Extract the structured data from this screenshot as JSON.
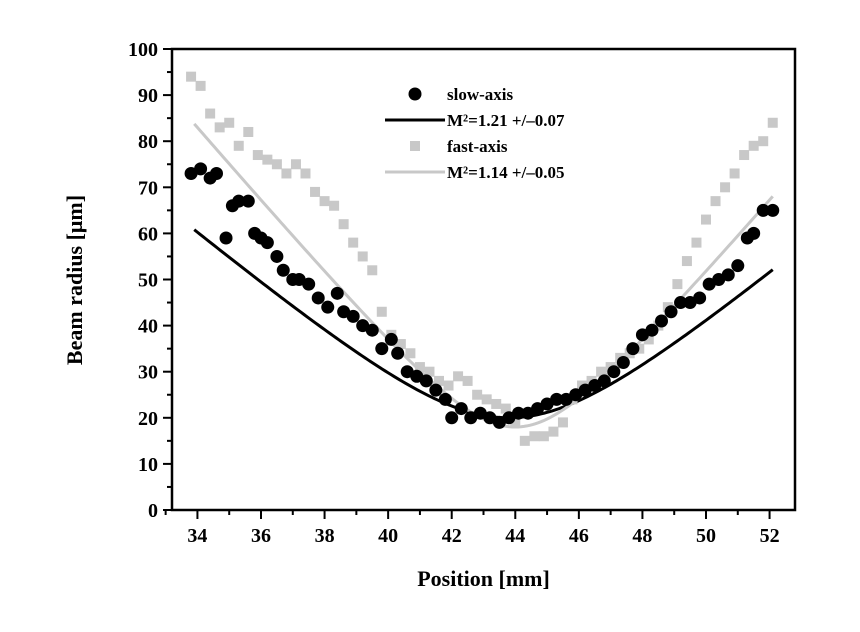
{
  "chart_data": {
    "type": "scatter",
    "xlabel": "Position [mm]",
    "ylabel": "Beam radius [μm]",
    "xlim": [
      33.2,
      52.8
    ],
    "ylim": [
      0,
      100
    ],
    "xticks": [
      "34",
      "36",
      "38",
      "40",
      "42",
      "44",
      "46",
      "48",
      "50",
      "52"
    ],
    "yticks": [
      "0",
      "10",
      "20",
      "30",
      "40",
      "50",
      "60",
      "70",
      "80",
      "90",
      "100"
    ],
    "legend_position": "top-center",
    "series": [
      {
        "name": "slow-axis",
        "kind": "points",
        "marker": "circle",
        "color": "#000000",
        "x": [
          33.8,
          34.1,
          34.4,
          34.6,
          34.9,
          35.1,
          35.3,
          35.6,
          35.8,
          36.0,
          36.2,
          36.5,
          36.7,
          37.0,
          37.2,
          37.5,
          37.8,
          38.1,
          38.4,
          38.6,
          38.9,
          39.2,
          39.5,
          39.8,
          40.1,
          40.3,
          40.6,
          40.9,
          41.2,
          41.5,
          41.8,
          42.0,
          42.3,
          42.6,
          42.9,
          43.2,
          43.5,
          43.8,
          44.1,
          44.4,
          44.7,
          45.0,
          45.3,
          45.6,
          45.9,
          46.2,
          46.5,
          46.8,
          47.1,
          47.4,
          47.7,
          48.0,
          48.3,
          48.6,
          48.9,
          49.2,
          49.5,
          49.8,
          50.1,
          50.4,
          50.7,
          51.0,
          51.3,
          51.5,
          51.8,
          52.1
        ],
        "y": [
          73,
          74,
          72,
          73,
          59,
          66,
          67,
          67,
          60,
          59,
          58,
          55,
          52,
          50,
          50,
          49,
          46,
          44,
          47,
          43,
          42,
          40,
          39,
          35,
          37,
          34,
          30,
          29,
          28,
          26,
          24,
          20,
          22,
          20,
          21,
          20,
          19,
          20,
          21,
          21,
          22,
          23,
          24,
          24,
          25,
          26,
          27,
          28,
          30,
          32,
          35,
          38,
          39,
          41,
          43,
          45,
          45,
          46,
          49,
          50,
          51,
          53,
          59,
          60,
          65,
          65
        ]
      },
      {
        "name": "M²=1.21 +/–0.07",
        "kind": "fit-line",
        "color": "#000000",
        "model": "hyperbolic beam caustic",
        "waist_um": 20,
        "waist_position_mm": 43.8,
        "x_range": [
          33.9,
          52.1
        ]
      },
      {
        "name": "fast-axis",
        "kind": "points",
        "marker": "square",
        "color": "#c8c8c8",
        "x": [
          33.8,
          34.1,
          34.4,
          34.7,
          35.0,
          35.3,
          35.6,
          35.9,
          36.2,
          36.5,
          36.8,
          37.1,
          37.4,
          37.7,
          38.0,
          38.3,
          38.6,
          38.9,
          39.2,
          39.5,
          39.8,
          40.1,
          40.4,
          40.7,
          41.0,
          41.3,
          41.6,
          41.9,
          42.2,
          42.5,
          42.8,
          43.1,
          43.4,
          43.7,
          44.0,
          44.3,
          44.6,
          44.9,
          45.2,
          45.5,
          45.8,
          46.1,
          46.4,
          46.7,
          47.0,
          47.3,
          47.6,
          47.9,
          48.2,
          48.5,
          48.8,
          49.1,
          49.4,
          49.7,
          50.0,
          50.3,
          50.6,
          50.9,
          51.2,
          51.5,
          51.8,
          52.1
        ],
        "y": [
          94,
          92,
          86,
          83,
          84,
          79,
          82,
          77,
          76,
          75,
          73,
          75,
          73,
          69,
          67,
          66,
          62,
          58,
          55,
          52,
          43,
          38,
          36,
          34,
          31,
          30,
          28,
          27,
          29,
          28,
          25,
          24,
          23,
          22,
          19,
          15,
          16,
          16,
          17,
          19,
          24,
          27,
          28,
          30,
          31,
          33,
          34,
          35,
          37,
          40,
          44,
          49,
          54,
          58,
          63,
          67,
          70,
          73,
          77,
          79,
          80,
          84
        ]
      },
      {
        "name": "M²=1.14 +/–0.05",
        "kind": "fit-line",
        "color": "#c8c8c8",
        "model": "hyperbolic beam caustic",
        "waist_um": 18,
        "waist_position_mm": 44.0,
        "x_range": [
          33.9,
          52.1
        ]
      }
    ]
  }
}
